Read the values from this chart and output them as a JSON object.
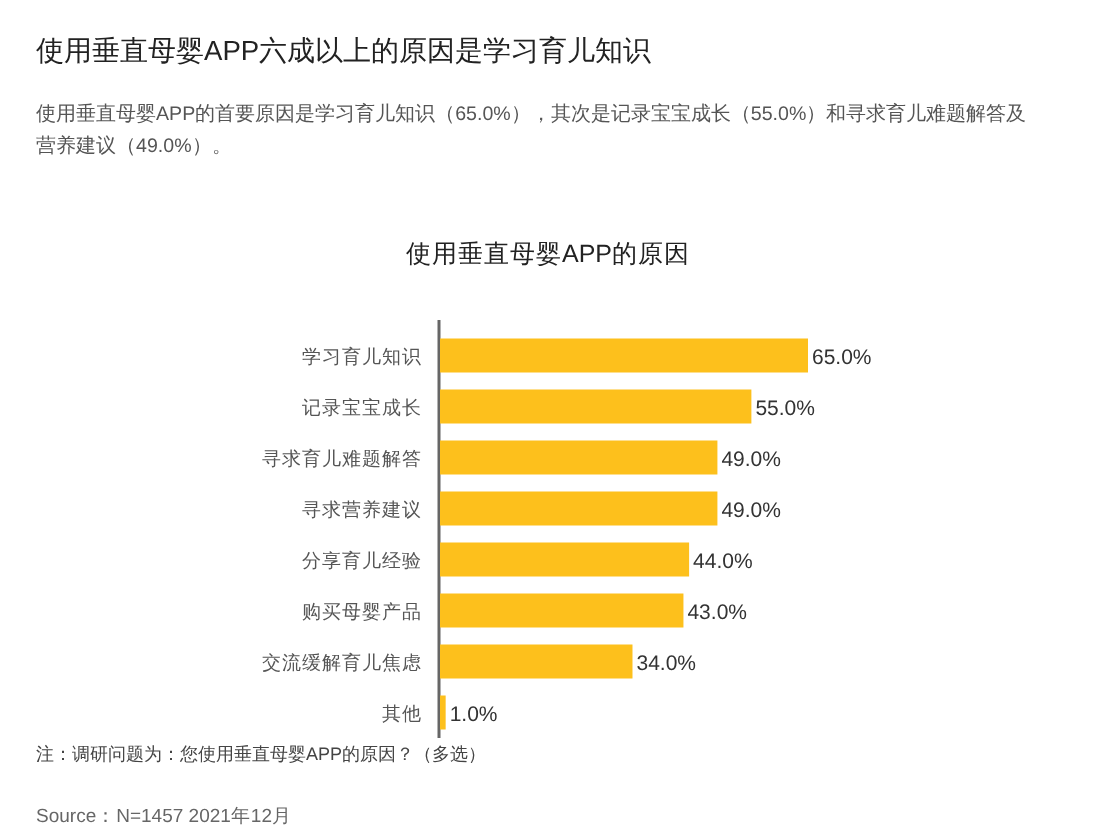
{
  "chart_data": {
    "type": "bar",
    "orientation": "horizontal",
    "title": "使用垂直母婴APP六成以上的原因是学习育儿知识",
    "subtitle": "使用垂直母婴APP的首要原因是学习育儿知识（65.0%），其次是记录宝宝成长（55.0%）和寻求育儿难题解答及营养建议（49.0%）。",
    "categories": [
      "学习育儿知识",
      "记录宝宝成长",
      "寻求育儿难题解答",
      "寻求营养建议",
      "分享育儿经验",
      "购买母婴产品",
      "交流缓解育儿焦虑",
      "其他"
    ],
    "values": [
      65.0,
      55.0,
      49.0,
      49.0,
      44.0,
      43.0,
      34.0,
      1.0
    ],
    "value_labels": [
      "65.0%",
      "55.0%",
      "49.0%",
      "49.0%",
      "44.0%",
      "43.0%",
      "34.0%",
      "1.0%"
    ],
    "color": "#fdc01c",
    "annotations": [
      "使用垂直母婴APP的原因",
      "注：调研问题为：您使用垂直母婴APP的原因？（多选）",
      "Source：N=1457 2021年12月"
    ]
  }
}
